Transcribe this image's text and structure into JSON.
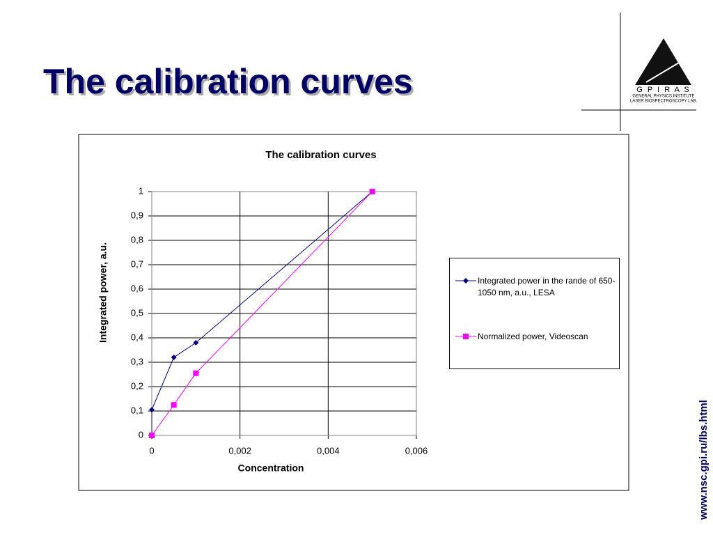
{
  "slide": {
    "title": "The calibration curves",
    "logo": {
      "acronym": "G P I   R A S",
      "line1": "GENERAL PHYSICS INSTITUTE",
      "line2": "LASER BIOSPECTROSCOPY LAB."
    },
    "url": "www.nsc.gpi.ru/lbs.html"
  },
  "chart_data": {
    "type": "line",
    "title": "The calibration curves",
    "x_label": "Concentration",
    "y_label": "Integrated power, a.u.",
    "xlim": [
      0,
      0.006
    ],
    "ylim": [
      0,
      1
    ],
    "xticks": [
      0,
      {
        "value": 0.002,
        "label": "0,002"
      },
      {
        "value": 0.004,
        "label": "0,004"
      },
      {
        "value": 0.006,
        "label": "0,006"
      }
    ],
    "yticks": [
      0,
      {
        "value": 0.1,
        "label": "0,1"
      },
      {
        "value": 0.2,
        "label": "0,2"
      },
      {
        "value": 0.3,
        "label": "0,3"
      },
      {
        "value": 0.4,
        "label": "0,4"
      },
      {
        "value": 0.5,
        "label": "0,5"
      },
      {
        "value": 0.6,
        "label": "0,6"
      },
      {
        "value": 0.7,
        "label": "0,7"
      },
      {
        "value": 0.8,
        "label": "0,8"
      },
      {
        "value": 0.9,
        "label": "0,9"
      },
      1
    ],
    "grid": true,
    "series": [
      {
        "name": "Integrated power in the rande of 650-1050 nm, a.u., LESA",
        "color": "#000080",
        "marker": "diamond",
        "x": [
          0,
          0,
          0.0005,
          0.001,
          0.005
        ],
        "values": [
          0,
          0.105,
          0.32,
          0.38,
          1
        ]
      },
      {
        "name": "Normalized power, Videoscan",
        "color": "#ff00ff",
        "marker": "square",
        "x": [
          0,
          0.0005,
          0.001,
          0.005
        ],
        "values": [
          0,
          0.125,
          0.255,
          1
        ]
      }
    ]
  }
}
